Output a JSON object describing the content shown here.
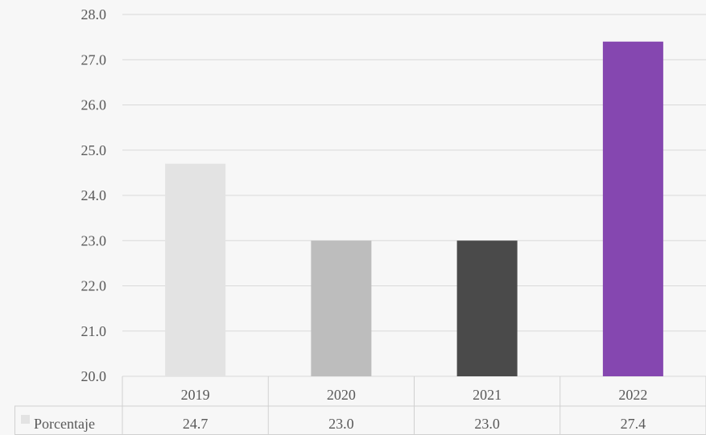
{
  "chart_data": {
    "type": "bar",
    "categories": [
      "2019",
      "2020",
      "2021",
      "2022"
    ],
    "series": [
      {
        "name": "Porcentaje",
        "values": [
          24.7,
          23.0,
          23.0,
          27.4
        ],
        "value_labels": [
          "24.7",
          "23.0",
          "23.0",
          "27.4"
        ]
      }
    ],
    "bar_colors": [
      "#e3e3e3",
      "#bdbdbd",
      "#4a4a4a",
      "#8547b0"
    ],
    "legend_swatch_color": "#e3e3e3",
    "ylim": [
      20.0,
      28.0
    ],
    "y_ticks": [
      "20.0",
      "21.0",
      "22.0",
      "23.0",
      "24.0",
      "25.0",
      "26.0",
      "27.0",
      "28.0"
    ],
    "grid": true,
    "data_table": true,
    "title": "",
    "xlabel": "",
    "ylabel": ""
  }
}
